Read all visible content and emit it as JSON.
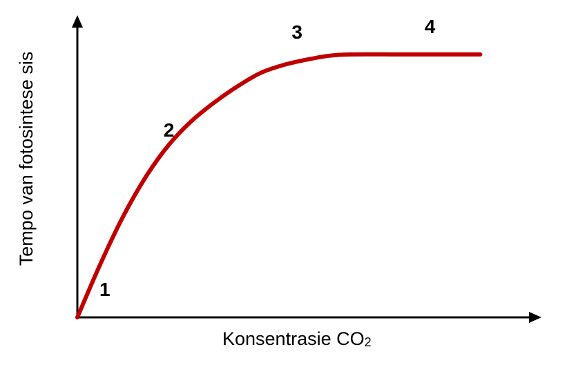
{
  "chart_data": {
    "type": "line",
    "xlabel": "Konsentrasie CO",
    "xlabel_subscript": "2",
    "ylabel": "Tempo van fotosintese sis",
    "ticks": "none",
    "grid": false,
    "legend": "none",
    "xlim": [
      0,
      100
    ],
    "ylim": [
      0,
      100
    ],
    "series": [
      {
        "color": "#c00000",
        "x": [
          0,
          5,
          10,
          15,
          20,
          25,
          30,
          35,
          40,
          45,
          50,
          55,
          60,
          70,
          80,
          88
        ],
        "y": [
          0,
          20,
          38,
          53,
          65,
          74,
          81,
          87,
          92,
          95,
          97,
          98.5,
          99,
          99,
          99,
          99
        ]
      }
    ],
    "annotations": [
      {
        "text": "1",
        "x": 6,
        "y": 8
      },
      {
        "text": "2",
        "x": 20,
        "y": 68
      },
      {
        "text": "3",
        "x": 48,
        "y": 105
      },
      {
        "text": "4",
        "x": 77,
        "y": 107
      }
    ],
    "colors": {
      "axis": "#000000",
      "curve": "#c00000"
    }
  }
}
